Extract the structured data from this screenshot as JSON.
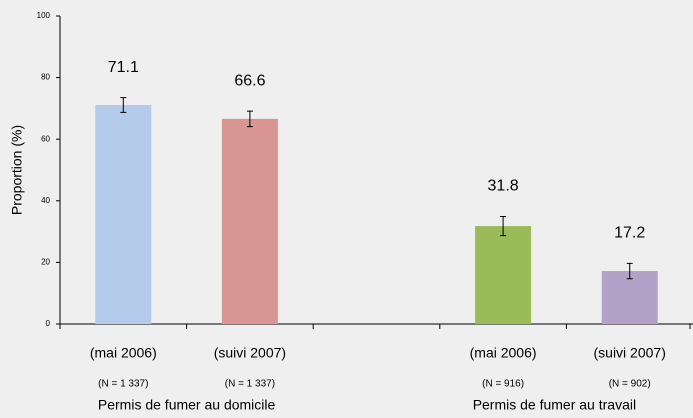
{
  "chart_data": {
    "type": "bar",
    "ylabel": "Proportion (%)",
    "categories": [
      "(mai 2006)",
      "(suivi 2007)",
      null,
      "(mai 2006)",
      "(suivi 2007)"
    ],
    "sample_sizes": [
      "(N = 1 337)",
      "(N = 1 337)",
      null,
      "(N = 916)",
      "(N = 902)"
    ],
    "groups": [
      "Permis de fumer au domicile",
      "Permis de fumer au travail"
    ],
    "values": [
      71.1,
      66.6,
      null,
      31.8,
      17.2
    ],
    "errors": [
      2.4,
      2.5,
      null,
      3.1,
      2.5
    ],
    "colors": [
      "#b4cbec",
      "#d99594",
      null,
      "#9bbb59",
      "#b3a2c7"
    ],
    "ylim": [
      0,
      100
    ],
    "yticks": [
      0,
      20,
      40,
      60,
      80,
      100
    ]
  }
}
